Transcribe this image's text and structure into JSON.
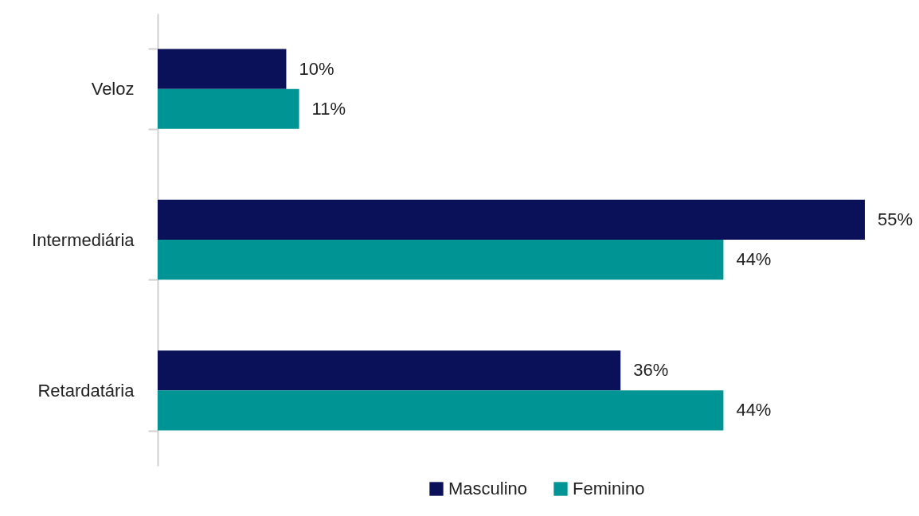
{
  "chart_data": {
    "type": "bar",
    "orientation": "horizontal",
    "categories": [
      "Veloz",
      "Intermediária",
      "Retardatária"
    ],
    "series": [
      {
        "name": "Masculino",
        "color": "#0a1158",
        "values": [
          10,
          55,
          36
        ],
        "value_labels": [
          "10%",
          "55%",
          "36%"
        ]
      },
      {
        "name": "Feminino",
        "color": "#009494",
        "values": [
          11,
          44,
          44
        ],
        "value_labels": [
          "11%",
          "44%",
          "44%"
        ]
      }
    ],
    "legend": "bottom"
  }
}
